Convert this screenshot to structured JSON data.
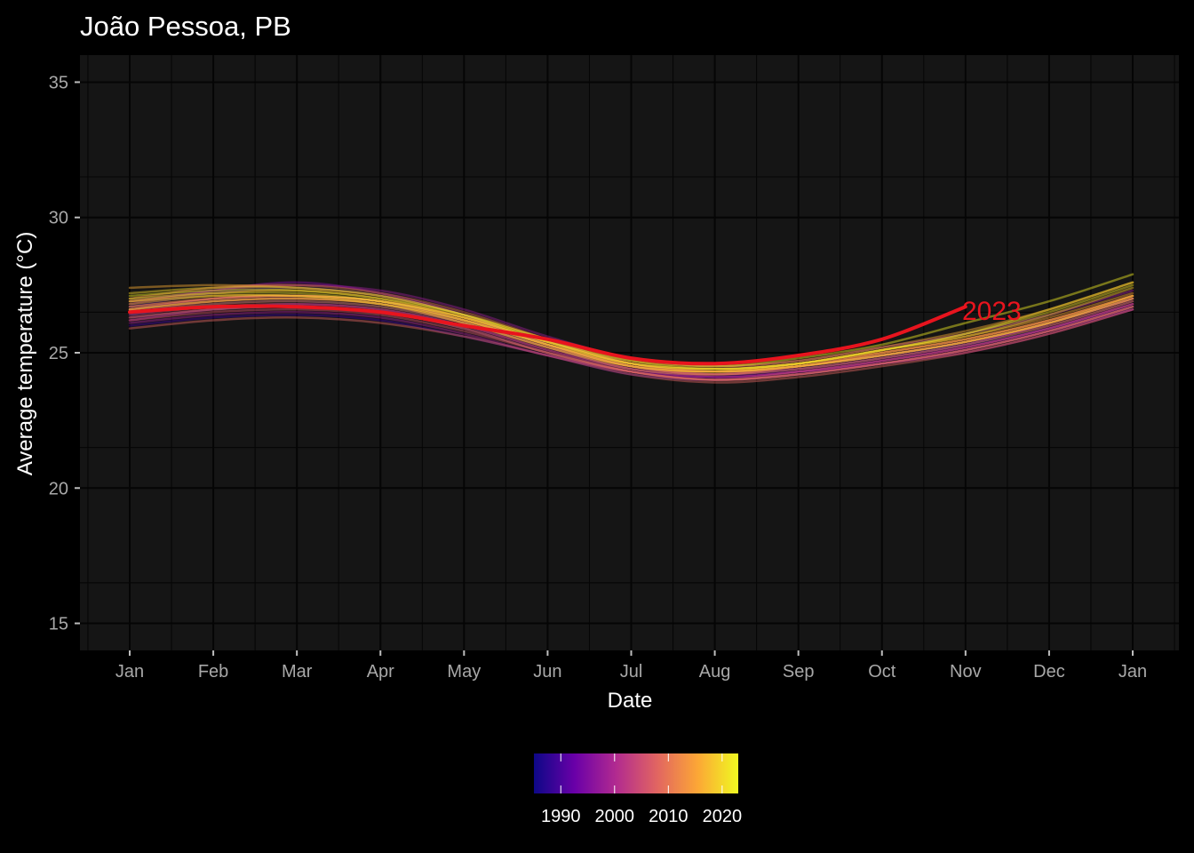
{
  "chart_data": {
    "type": "line",
    "title": "João Pessoa, PB",
    "xlabel": "Date",
    "ylabel": "Average temperature (°C)",
    "x_ticks": [
      "Jan",
      "Feb",
      "Mar",
      "Apr",
      "May",
      "Jun",
      "Jul",
      "Aug",
      "Sep",
      "Oct",
      "Nov",
      "Dec",
      "Jan"
    ],
    "ylim": [
      14,
      36
    ],
    "y_ticks": [
      15,
      20,
      25,
      30,
      35
    ],
    "grid": true,
    "x_months": [
      0,
      1,
      2,
      3,
      4,
      5,
      6,
      7,
      8,
      9,
      10,
      11,
      12
    ],
    "colorbar": {
      "position": "bottom",
      "range": [
        1985,
        2023
      ],
      "ticks": [
        1990,
        2000,
        2010,
        2020
      ],
      "colors": [
        "#0d0887",
        "#6a00a8",
        "#b12a90",
        "#e16462",
        "#fca636",
        "#f0f921"
      ]
    },
    "highlight": {
      "label": "2023",
      "color": "#e8141e"
    },
    "series": [
      {
        "year": 1985,
        "values": [
          26.4,
          26.8,
          26.9,
          26.7,
          26.1,
          25.2,
          24.4,
          24.2,
          24.5,
          24.9,
          25.3,
          25.9,
          26.7
        ]
      },
      {
        "year": 1987,
        "values": [
          26.7,
          27.2,
          27.4,
          27.1,
          26.4,
          25.3,
          24.5,
          24.2,
          24.4,
          24.8,
          25.3,
          26.1,
          27.0
        ]
      },
      {
        "year": 1989,
        "values": [
          26.0,
          26.3,
          26.4,
          26.2,
          25.6,
          24.9,
          24.2,
          24.0,
          24.2,
          24.6,
          25.1,
          25.8,
          26.6
        ]
      },
      {
        "year": 1991,
        "values": [
          26.6,
          27.0,
          27.1,
          26.9,
          26.2,
          25.4,
          24.6,
          24.3,
          24.5,
          24.9,
          25.4,
          26.0,
          26.9
        ]
      },
      {
        "year": 1993,
        "values": [
          26.3,
          26.6,
          26.7,
          26.5,
          25.9,
          25.0,
          24.3,
          24.1,
          24.3,
          24.7,
          25.2,
          25.9,
          26.8
        ]
      },
      {
        "year": 1995,
        "values": [
          26.8,
          27.3,
          27.6,
          27.2,
          26.4,
          25.3,
          24.5,
          24.2,
          24.4,
          24.8,
          25.3,
          26.1,
          27.0
        ]
      },
      {
        "year": 1997,
        "values": [
          26.2,
          26.6,
          26.8,
          26.6,
          26.0,
          25.1,
          24.4,
          24.1,
          24.3,
          24.6,
          25.1,
          25.8,
          26.7
        ]
      },
      {
        "year": 1998,
        "values": [
          26.9,
          27.3,
          27.5,
          27.3,
          26.6,
          25.6,
          24.8,
          24.5,
          24.7,
          25.2,
          25.7,
          26.4,
          27.3
        ]
      },
      {
        "year": 1999,
        "values": [
          26.1,
          26.4,
          26.5,
          26.3,
          25.7,
          24.9,
          24.3,
          24.0,
          24.2,
          24.6,
          25.0,
          25.7,
          26.6
        ]
      },
      {
        "year": 2001,
        "values": [
          26.5,
          26.9,
          27.0,
          26.8,
          26.1,
          25.2,
          24.4,
          24.1,
          24.3,
          24.7,
          25.2,
          25.9,
          26.8
        ]
      },
      {
        "year": 2003,
        "values": [
          26.7,
          27.0,
          27.1,
          26.9,
          26.2,
          25.3,
          24.5,
          24.2,
          24.5,
          24.9,
          25.4,
          26.1,
          27.0
        ]
      },
      {
        "year": 2005,
        "values": [
          26.4,
          26.7,
          26.8,
          26.6,
          26.0,
          25.1,
          24.3,
          24.0,
          24.3,
          24.7,
          25.2,
          25.9,
          26.8
        ]
      },
      {
        "year": 2006,
        "values": [
          26.2,
          26.5,
          26.6,
          26.4,
          25.8,
          25.0,
          24.3,
          24.0,
          24.2,
          24.6,
          25.1,
          25.8,
          26.7
        ]
      },
      {
        "year": 2008,
        "values": [
          25.9,
          26.2,
          26.3,
          26.1,
          25.6,
          24.9,
          24.2,
          23.9,
          24.1,
          24.5,
          25.0,
          25.7,
          26.6
        ]
      },
      {
        "year": 2009,
        "values": [
          26.6,
          27.0,
          27.1,
          26.9,
          26.3,
          25.3,
          24.5,
          24.2,
          24.5,
          24.9,
          25.4,
          26.1,
          27.0
        ]
      },
      {
        "year": 2010,
        "values": [
          27.0,
          27.4,
          27.5,
          27.2,
          26.5,
          25.5,
          24.6,
          24.3,
          24.5,
          25.0,
          25.5,
          26.2,
          27.1
        ]
      },
      {
        "year": 2011,
        "values": [
          26.3,
          26.6,
          26.7,
          26.5,
          25.9,
          25.0,
          24.3,
          24.0,
          24.2,
          24.6,
          25.1,
          25.8,
          26.7
        ]
      },
      {
        "year": 2012,
        "values": [
          26.6,
          26.9,
          27.0,
          26.8,
          26.2,
          25.3,
          24.5,
          24.3,
          24.5,
          25.0,
          25.5,
          26.2,
          27.1
        ]
      },
      {
        "year": 2013,
        "values": [
          26.5,
          26.8,
          26.9,
          26.7,
          26.1,
          25.2,
          24.4,
          24.2,
          24.4,
          24.8,
          25.3,
          26.0,
          26.9
        ]
      },
      {
        "year": 2014,
        "values": [
          26.7,
          27.0,
          27.1,
          26.9,
          26.3,
          25.4,
          24.6,
          24.3,
          24.6,
          25.0,
          25.5,
          26.2,
          27.1
        ]
      },
      {
        "year": 2015,
        "values": [
          26.9,
          27.2,
          27.3,
          27.0,
          26.3,
          25.4,
          24.6,
          24.4,
          24.6,
          25.1,
          25.6,
          26.3,
          27.2
        ]
      },
      {
        "year": 2016,
        "values": [
          27.4,
          27.5,
          27.4,
          27.1,
          26.4,
          25.5,
          24.7,
          24.5,
          24.7,
          25.2,
          25.8,
          26.6,
          27.6
        ]
      },
      {
        "year": 2017,
        "values": [
          26.8,
          27.1,
          27.1,
          26.9,
          26.2,
          25.3,
          24.5,
          24.3,
          24.5,
          24.9,
          25.4,
          26.1,
          27.1
        ]
      },
      {
        "year": 2018,
        "values": [
          26.6,
          26.9,
          27.0,
          26.8,
          26.1,
          25.2,
          24.5,
          24.3,
          24.5,
          24.9,
          25.4,
          26.1,
          27.0
        ]
      },
      {
        "year": 2019,
        "values": [
          26.9,
          27.1,
          27.1,
          26.8,
          26.2,
          25.3,
          24.6,
          24.4,
          24.6,
          25.1,
          25.6,
          26.4,
          27.4
        ]
      },
      {
        "year": 2020,
        "values": [
          27.2,
          27.4,
          27.4,
          27.1,
          26.4,
          25.4,
          24.6,
          24.4,
          24.6,
          25.1,
          25.7,
          26.6,
          27.6
        ]
      },
      {
        "year": 2021,
        "values": [
          27.0,
          27.2,
          27.2,
          26.9,
          26.3,
          25.4,
          24.7,
          24.4,
          24.6,
          25.1,
          25.7,
          26.5,
          27.5
        ]
      },
      {
        "year": 2022,
        "values": [
          27.1,
          27.3,
          27.3,
          27.0,
          26.4,
          25.5,
          24.8,
          24.5,
          24.8,
          25.3,
          26.1,
          26.9,
          27.9
        ]
      }
    ],
    "highlight_series": {
      "year": 2023,
      "values": [
        26.5,
        26.7,
        26.7,
        26.5,
        26.0,
        25.5,
        24.8,
        24.6,
        24.9,
        25.5,
        26.7
      ]
    }
  }
}
